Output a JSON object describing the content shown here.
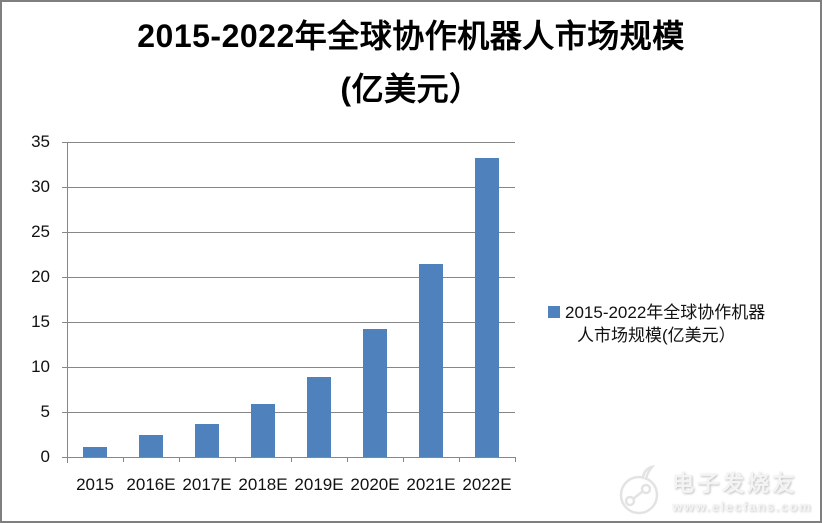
{
  "title": {
    "line1": "2015-2022年全球协作机器人市场规模",
    "line2": "(亿美元）"
  },
  "chart_data": {
    "type": "bar",
    "title": "2015-2022年全球协作机器人市场规模(亿美元）",
    "categories": [
      "2015",
      "2016E",
      "2017E",
      "2018E",
      "2019E",
      "2020E",
      "2021E",
      "2022E"
    ],
    "values": [
      1.1,
      2.4,
      3.7,
      5.9,
      8.9,
      14.2,
      21.4,
      33.2
    ],
    "series_name": "2015-2022年全球协作机器人市场规模(亿美元）",
    "xlabel": "",
    "ylabel": "",
    "ylim": [
      0,
      35
    ],
    "yticks": [
      0,
      5,
      10,
      15,
      20,
      25,
      30,
      35
    ],
    "grid": true,
    "legend_position": "right",
    "bar_color": "#4F81BD",
    "gridline_color": "#878787"
  },
  "legend": {
    "line1": "2015-2022年全球协作机器",
    "line2": "人市场规模(亿美元）"
  },
  "watermark": {
    "brand": "电子发烧友",
    "url": "www.elecfans.com"
  }
}
